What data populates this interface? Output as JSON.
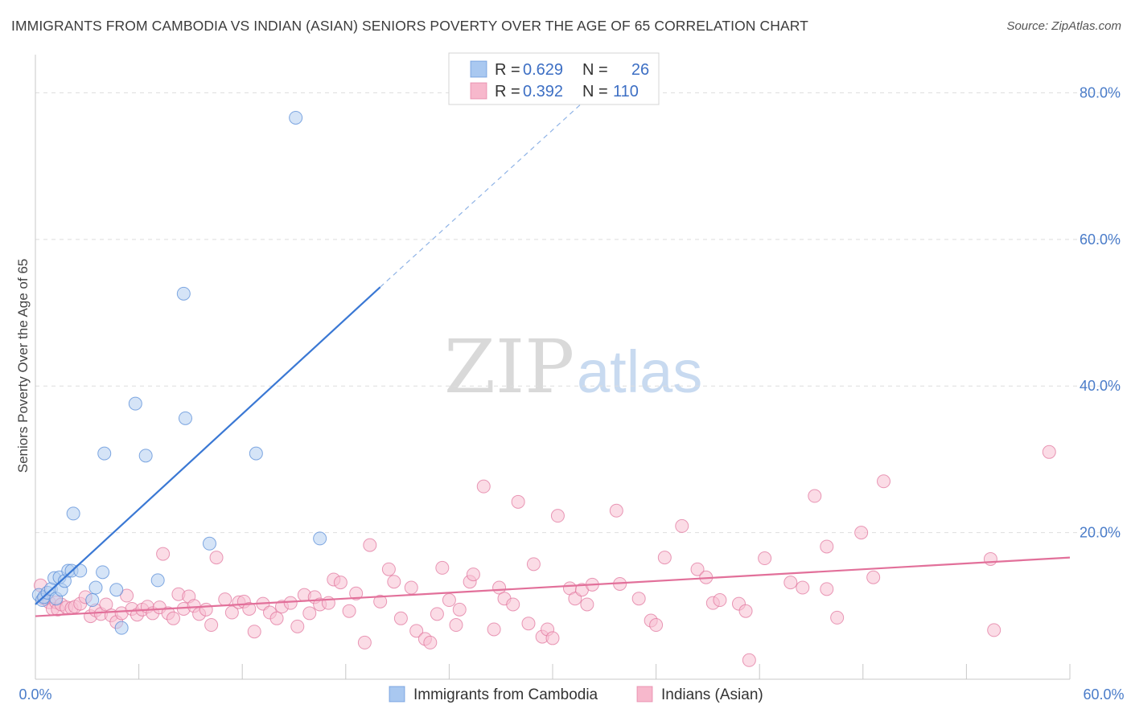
{
  "title": "IMMIGRANTS FROM CAMBODIA VS INDIAN (ASIAN) SENIORS POVERTY OVER THE AGE OF 65 CORRELATION CHART",
  "source": "Source: ZipAtlas.com",
  "watermark": {
    "zip": "ZIP",
    "atlas": "atlas"
  },
  "legend_top": [
    {
      "r_label": "R =",
      "r_value": "0.629",
      "n_label": "N =",
      "n_value": "26",
      "color": "#a9c8f0"
    },
    {
      "r_label": "R =",
      "r_value": "0.392",
      "n_label": "N =",
      "n_value": "110",
      "color": "#f7b8cc"
    }
  ],
  "chart_data": {
    "type": "scatter",
    "title": "IMMIGRANTS FROM CAMBODIA VS INDIAN (ASIAN) SENIORS POVERTY OVER THE AGE OF 65 CORRELATION CHART",
    "xlabel": "",
    "ylabel": "Seniors Poverty Over the Age of 65",
    "xlim": [
      0,
      60
    ],
    "ylim": [
      0,
      84
    ],
    "x_tick_labels": [
      "0.0%",
      "60.0%"
    ],
    "y_tick_labels": [
      "20.0%",
      "40.0%",
      "60.0%",
      "80.0%"
    ],
    "y_tick_values": [
      20,
      40,
      60,
      80
    ],
    "legend": [
      "Immigrants from Cambodia",
      "Indians (Asian)"
    ],
    "series": [
      {
        "name": "Immigrants from Cambodia",
        "color": "#4f86d6",
        "fill": "#b3cdf0",
        "points": [
          [
            0.2,
            11.5
          ],
          [
            0.4,
            10.8
          ],
          [
            0.5,
            11.2
          ],
          [
            0.7,
            11.8
          ],
          [
            0.9,
            12.3
          ],
          [
            1.1,
            13.8
          ],
          [
            1.2,
            11.0
          ],
          [
            1.4,
            13.9
          ],
          [
            1.5,
            12.2
          ],
          [
            1.7,
            13.4
          ],
          [
            1.9,
            14.8
          ],
          [
            2.1,
            14.8
          ],
          [
            2.2,
            22.6
          ],
          [
            2.6,
            14.8
          ],
          [
            3.3,
            10.8
          ],
          [
            3.5,
            12.5
          ],
          [
            3.9,
            14.6
          ],
          [
            4.0,
            30.8
          ],
          [
            4.7,
            12.2
          ],
          [
            5.0,
            7.0
          ],
          [
            5.8,
            37.6
          ],
          [
            6.4,
            30.5
          ],
          [
            7.1,
            13.5
          ],
          [
            8.6,
            52.6
          ],
          [
            8.7,
            35.6
          ],
          [
            10.1,
            18.5
          ],
          [
            12.8,
            30.8
          ],
          [
            15.1,
            76.6
          ],
          [
            16.5,
            19.2
          ]
        ],
        "trend": {
          "x1": 0,
          "y1": 10.2,
          "x2": 20.0,
          "y2": 53.5,
          "dash_x2": 32.5,
          "dash_y2": 80.3
        }
      },
      {
        "name": "Indians (Asian)",
        "color": "#e0709a",
        "fill": "#f7bfd1",
        "points": [
          [
            0.3,
            12.8
          ],
          [
            0.5,
            11.0
          ],
          [
            0.8,
            10.5
          ],
          [
            1.0,
            9.6
          ],
          [
            1.2,
            10.5
          ],
          [
            1.3,
            9.5
          ],
          [
            1.5,
            10.2
          ],
          [
            1.8,
            9.8
          ],
          [
            2.1,
            9.7
          ],
          [
            2.3,
            9.9
          ],
          [
            2.6,
            10.3
          ],
          [
            2.9,
            11.2
          ],
          [
            3.2,
            8.6
          ],
          [
            3.5,
            9.4
          ],
          [
            3.8,
            8.9
          ],
          [
            4.1,
            10.2
          ],
          [
            4.4,
            8.7
          ],
          [
            4.7,
            7.8
          ],
          [
            5.0,
            9.0
          ],
          [
            5.3,
            11.4
          ],
          [
            5.6,
            9.6
          ],
          [
            5.9,
            8.8
          ],
          [
            6.2,
            9.5
          ],
          [
            6.5,
            9.9
          ],
          [
            6.8,
            9.0
          ],
          [
            7.2,
            9.8
          ],
          [
            7.4,
            17.1
          ],
          [
            7.7,
            9.0
          ],
          [
            8.0,
            8.3
          ],
          [
            8.3,
            11.6
          ],
          [
            8.6,
            9.6
          ],
          [
            8.9,
            11.3
          ],
          [
            9.2,
            10.0
          ],
          [
            9.5,
            8.9
          ],
          [
            9.9,
            9.5
          ],
          [
            10.2,
            7.4
          ],
          [
            10.5,
            16.6
          ],
          [
            11.0,
            10.9
          ],
          [
            11.4,
            9.1
          ],
          [
            11.8,
            10.5
          ],
          [
            12.1,
            10.6
          ],
          [
            12.4,
            9.6
          ],
          [
            12.7,
            6.5
          ],
          [
            13.2,
            10.3
          ],
          [
            13.6,
            9.1
          ],
          [
            14.0,
            8.3
          ],
          [
            14.3,
            9.9
          ],
          [
            14.8,
            10.4
          ],
          [
            15.2,
            7.2
          ],
          [
            15.6,
            11.5
          ],
          [
            15.9,
            9.0
          ],
          [
            16.2,
            11.2
          ],
          [
            16.5,
            10.2
          ],
          [
            17.0,
            10.4
          ],
          [
            17.3,
            13.6
          ],
          [
            17.7,
            13.2
          ],
          [
            18.2,
            9.3
          ],
          [
            18.6,
            11.7
          ],
          [
            19.1,
            5.0
          ],
          [
            19.4,
            18.3
          ],
          [
            20.0,
            10.6
          ],
          [
            20.5,
            15.0
          ],
          [
            20.8,
            13.3
          ],
          [
            21.2,
            8.3
          ],
          [
            21.8,
            12.5
          ],
          [
            22.1,
            6.6
          ],
          [
            22.6,
            5.5
          ],
          [
            22.9,
            5.0
          ],
          [
            23.3,
            8.9
          ],
          [
            23.6,
            15.2
          ],
          [
            24.0,
            10.8
          ],
          [
            24.4,
            7.4
          ],
          [
            24.6,
            9.5
          ],
          [
            25.2,
            13.3
          ],
          [
            25.4,
            14.3
          ],
          [
            26.0,
            26.3
          ],
          [
            26.6,
            6.8
          ],
          [
            26.9,
            12.5
          ],
          [
            27.2,
            11.0
          ],
          [
            27.7,
            10.2
          ],
          [
            28.0,
            24.2
          ],
          [
            28.6,
            7.6
          ],
          [
            28.9,
            15.7
          ],
          [
            29.4,
            5.8
          ],
          [
            29.7,
            6.8
          ],
          [
            30.0,
            5.6
          ],
          [
            30.3,
            22.3
          ],
          [
            31.0,
            12.4
          ],
          [
            31.3,
            11.0
          ],
          [
            31.7,
            12.2
          ],
          [
            32.0,
            10.2
          ],
          [
            32.3,
            12.9
          ],
          [
            33.7,
            23.0
          ],
          [
            33.9,
            13.0
          ],
          [
            35.0,
            11.0
          ],
          [
            35.7,
            8.0
          ],
          [
            36.0,
            7.4
          ],
          [
            36.5,
            16.6
          ],
          [
            37.5,
            20.9
          ],
          [
            38.4,
            15.0
          ],
          [
            38.9,
            13.9
          ],
          [
            39.3,
            10.4
          ],
          [
            39.7,
            10.8
          ],
          [
            40.8,
            10.3
          ],
          [
            41.2,
            9.3
          ],
          [
            41.4,
            2.6
          ],
          [
            42.3,
            16.5
          ],
          [
            43.8,
            13.2
          ],
          [
            44.5,
            12.5
          ],
          [
            45.2,
            25.0
          ],
          [
            45.9,
            12.3
          ],
          [
            45.9,
            18.1
          ],
          [
            46.5,
            8.4
          ],
          [
            47.9,
            20.0
          ],
          [
            48.6,
            13.9
          ],
          [
            49.2,
            27.0
          ],
          [
            55.4,
            16.4
          ],
          [
            55.6,
            6.7
          ],
          [
            58.8,
            31.0
          ]
        ],
        "trend": {
          "x1": 0,
          "y1": 8.6,
          "x2": 60.0,
          "y2": 16.6
        }
      }
    ]
  }
}
